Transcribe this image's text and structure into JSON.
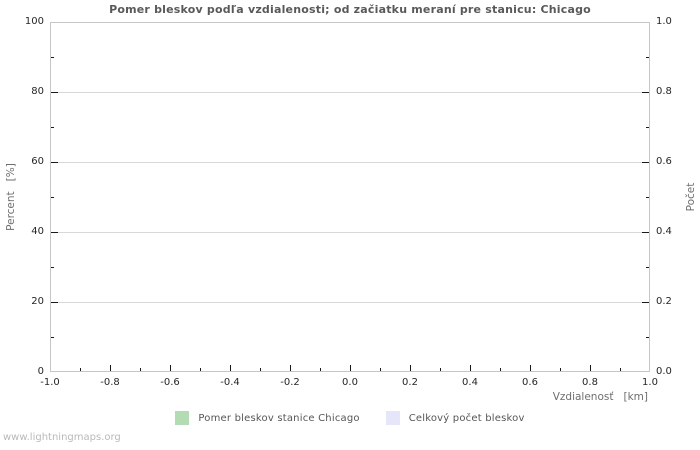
{
  "chart_data": {
    "type": "line",
    "title": "Pomer bleskov podľa vzdialenosti; od začiatku meraní pre stanicu: Chicago",
    "xlabel": "Vzdialenosť   [km]",
    "ylabel_left": "Percent   [%]",
    "ylabel_right": "Počet",
    "xlim": [
      -1.0,
      1.0
    ],
    "ylim_left": [
      0,
      100
    ],
    "ylim_right": [
      0.0,
      1.0
    ],
    "x_ticks": [
      "-1.0",
      "-0.8",
      "-0.6",
      "-0.4",
      "-0.2",
      "0.0",
      "0.2",
      "0.4",
      "0.6",
      "0.8",
      "1.0"
    ],
    "y_left_ticks": [
      "0",
      "20",
      "40",
      "60",
      "80",
      "100"
    ],
    "y_right_ticks": [
      "0.0",
      "0.2",
      "0.4",
      "0.6",
      "0.8",
      "1.0"
    ],
    "grid": "horizontal-major-only",
    "legend_position": "bottom-center",
    "series": [
      {
        "name": "Pomer bleskov stanice Chicago",
        "color": "#b4dcb4",
        "values": []
      },
      {
        "name": "Celkový počet bleskov",
        "color": "#e6e6fa",
        "values": []
      }
    ]
  },
  "footer": {
    "watermark": "www.lightningmaps.org"
  },
  "colors": {
    "background": "#ffffff",
    "plot_border": "#c6c6c6",
    "gridline": "#d8d8d8",
    "tick": "#1a1a1a",
    "title_text": "#595959",
    "tick_label_text": "#262626",
    "axis_label_text": "#6e6e6e",
    "legend_text": "#565656",
    "watermark_text": "#b9b9b9"
  }
}
